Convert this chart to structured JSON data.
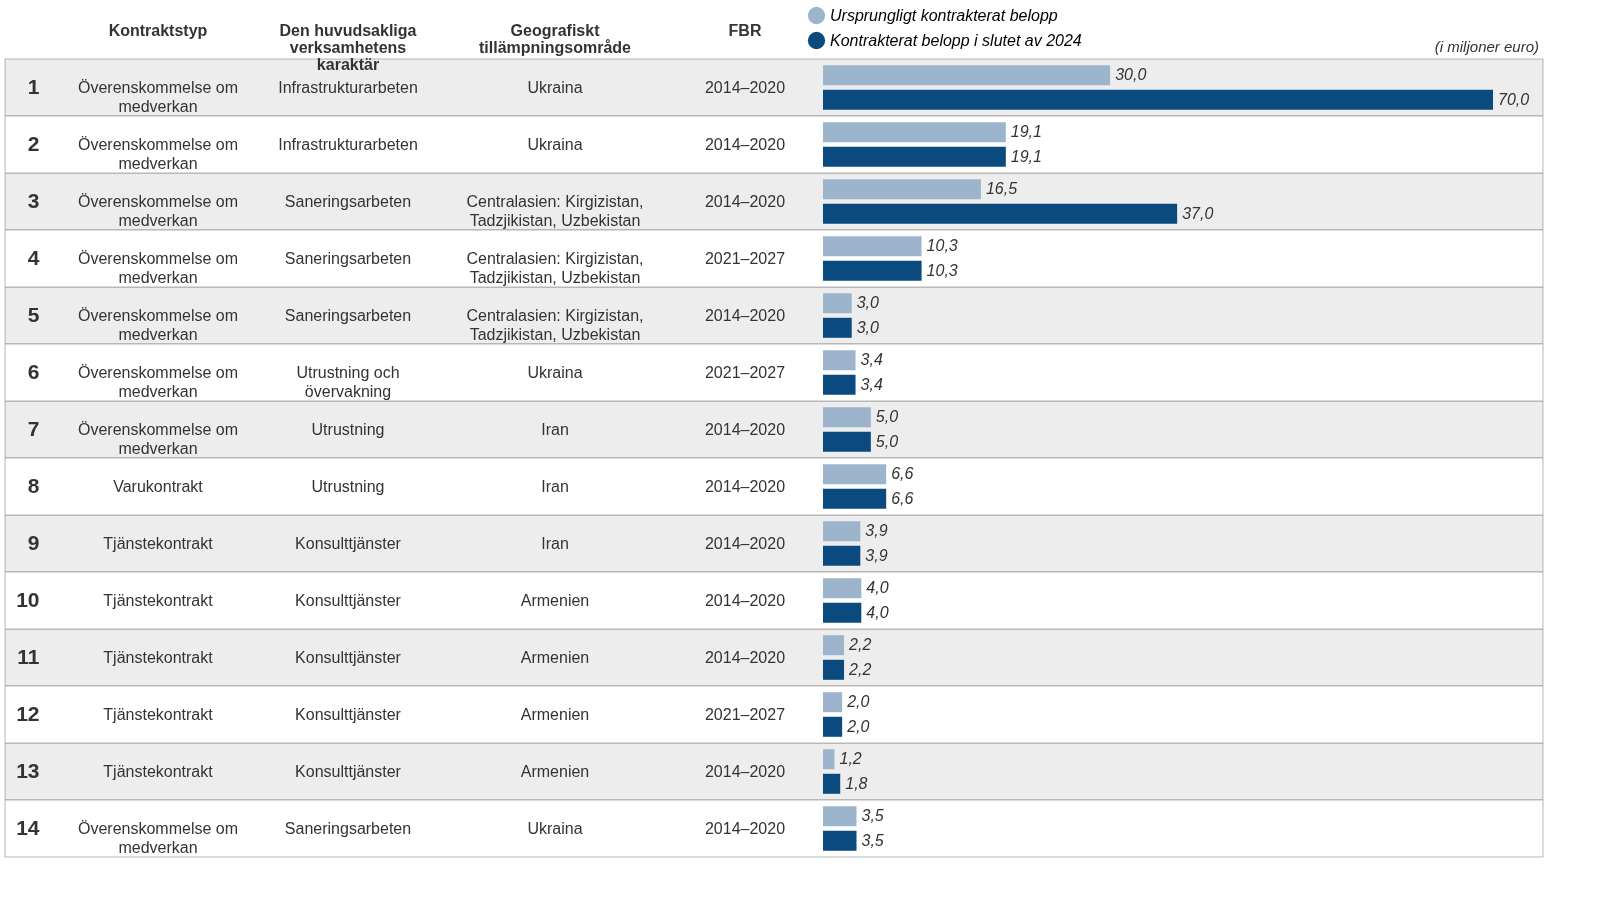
{
  "chart_data": [
    {
      "type": "other",
      "categories": [
        "Kontraktstyp",
        "Den huvudsakliga verksamhetens karaktär",
        "Geografiskt tillämpningsområde",
        "FBR"
      ],
      "cell_labels": [
        [
          "Överenskommelse om medverkan",
          "Infrastrukturarbeten",
          "Ukraina",
          "2014–2020"
        ],
        [
          "Överenskommelse om medverkan",
          "Infrastrukturarbeten",
          "Ukraina",
          "2014–2020"
        ],
        [
          "Överenskommelse om medverkan",
          "Saneringsarbeten",
          "Centralasien: Kirgizistan, Tadzjikistan, Uzbekistan",
          "2014–2020"
        ],
        [
          "Överenskommelse om medverkan",
          "Saneringsarbeten",
          "Centralasien: Kirgizistan, Tadzjikistan, Uzbekistan",
          "2021–2027"
        ],
        [
          "Överenskommelse om medverkan",
          "Saneringsarbeten",
          "Centralasien: Kirgizistan, Tadzjikistan, Uzbekistan",
          "2014–2020"
        ],
        [
          "Överenskommelse om medverkan",
          "Utrustning och övervakning",
          "Ukraina",
          "2021–2027"
        ],
        [
          "Överenskommelse om medverkan",
          "Utrustning",
          "Iran",
          "2014–2020"
        ],
        [
          "Varukontrakt",
          "Utrustning",
          "Iran",
          "2014–2020"
        ],
        [
          "Tjänstekontrakt",
          "Konsulttjänster",
          "Iran",
          "2014–2020"
        ],
        [
          "Tjänstekontrakt",
          "Konsulttjänster",
          "Armenien",
          "2014–2020"
        ],
        [
          "Tjänstekontrakt",
          "Konsulttjänster",
          "Armenien",
          "2014–2020"
        ],
        [
          "Tjänstekontrakt",
          "Konsulttjänster",
          "Armenien",
          "2021–2027"
        ],
        [
          "Tjänstekontrakt",
          "Konsulttjänster",
          "Armenien",
          "2014–2020"
        ],
        [
          "Överenskommelse om medverkan",
          "Saneringsarbeten",
          "Ukraina",
          "2014–2020"
        ]
      ]
    },
    {
      "type": "bar",
      "orientation": "horizontal",
      "legend": "top left",
      "categories": [
        "1",
        "2",
        "3",
        "4",
        "5",
        "6",
        "7",
        "8",
        "9",
        "10",
        "11",
        "12",
        "13",
        "14"
      ],
      "annotations": [
        "(i miljoner euro)"
      ],
      "series": [
        {
          "name": "Ursprungligt kontrakterat belopp",
          "color": "#9db5cc",
          "values": [
            30.0,
            19.1,
            16.5,
            10.3,
            3.0,
            3.4,
            5.0,
            6.6,
            3.9,
            4.0,
            2.2,
            2.0,
            1.2,
            3.5
          ],
          "value_labels": [
            "30,0",
            "19,1",
            "16,5",
            "10,3",
            "3,0",
            "3,4",
            "5,0",
            "6,6",
            "3,9",
            "4,0",
            "2,2",
            "2,0",
            "1,2",
            "3,5"
          ]
        },
        {
          "name": "Kontrakterat belopp i slutet av 2024",
          "color": "#0a4a7e",
          "values": [
            70.0,
            19.1,
            37.0,
            10.3,
            3.0,
            3.4,
            5.0,
            6.6,
            3.9,
            4.0,
            2.2,
            2.0,
            1.8,
            3.5
          ],
          "value_labels": [
            "70,0",
            "19,1",
            "37,0",
            "10,3",
            "3,0",
            "3,4",
            "5,0",
            "6,6",
            "3,9",
            "4,0",
            "2,2",
            "2,0",
            "1,8",
            "3,5"
          ]
        }
      ]
    }
  ]
}
